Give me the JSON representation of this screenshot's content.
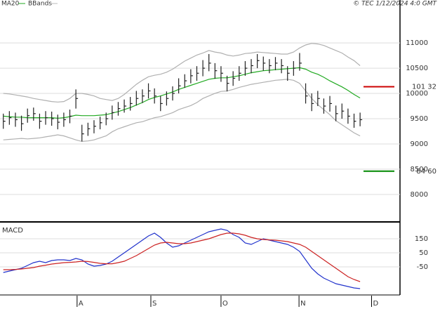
{
  "chart_data": [
    {
      "type": "ohlc",
      "copyright": "© TEC 1/12/2024 4:0 GMT",
      "color": "#222222",
      "xlim": [
        -0.2,
        65.6
      ],
      "ylim": [
        7470,
        11850
      ],
      "yticks": [
        11000,
        10500,
        10000,
        9500,
        9000,
        8500,
        8000
      ],
      "grid": true,
      "close": [
        9450,
        9520,
        9480,
        9400,
        9560,
        9600,
        9450,
        9520,
        9500,
        9430,
        9480,
        9550,
        9900,
        9200,
        9300,
        9350,
        9420,
        9500,
        9620,
        9700,
        9750,
        9800,
        9900,
        9950,
        10050,
        9950,
        9800,
        9900,
        10000,
        10150,
        10250,
        10350,
        10400,
        10500,
        10600,
        10450,
        10400,
        10200,
        10300,
        10400,
        10500,
        10550,
        10650,
        10600,
        10550,
        10600,
        10550,
        10400,
        10500,
        10600,
        9950,
        9800,
        9900,
        9750,
        9800,
        9600,
        9650,
        9550,
        9450,
        9480
      ],
      "high": [
        9600,
        9650,
        9620,
        9560,
        9700,
        9720,
        9600,
        9650,
        9640,
        9580,
        9620,
        9680,
        10080,
        9380,
        9420,
        9470,
        9540,
        9620,
        9760,
        9830,
        9880,
        9930,
        10050,
        10080,
        10200,
        10100,
        9950,
        10040,
        10140,
        10300,
        10380,
        10480,
        10540,
        10660,
        10780,
        10600,
        10540,
        10350,
        10440,
        10540,
        10640,
        10680,
        10780,
        10730,
        10680,
        10720,
        10680,
        10540,
        10640,
        10800,
        10200,
        10000,
        10050,
        9900,
        9950,
        9760,
        9800,
        9700,
        9600,
        9620
      ],
      "low": [
        9300,
        9380,
        9340,
        9260,
        9420,
        9460,
        9300,
        9380,
        9360,
        9290,
        9340,
        9410,
        9700,
        9050,
        9160,
        9210,
        9290,
        9370,
        9480,
        9560,
        9620,
        9660,
        9760,
        9810,
        9900,
        9800,
        9650,
        9760,
        9860,
        10000,
        10110,
        10200,
        10250,
        10340,
        10440,
        10290,
        10230,
        10040,
        10150,
        10250,
        10350,
        10400,
        10500,
        10450,
        10400,
        10460,
        10400,
        10250,
        10350,
        10450,
        9800,
        9650,
        9750,
        9600,
        9640,
        9450,
        9500,
        9400,
        9320,
        9350
      ],
      "series": [
        {
          "name": "MA20",
          "color": "#22aa22",
          "values": [
            9550,
            9540,
            9530,
            9530,
            9520,
            9520,
            9520,
            9520,
            9520,
            9510,
            9520,
            9540,
            9570,
            9560,
            9560,
            9560,
            9570,
            9580,
            9610,
            9640,
            9680,
            9720,
            9770,
            9820,
            9880,
            9920,
            9950,
            9990,
            10030,
            10080,
            10120,
            10160,
            10200,
            10240,
            10280,
            10300,
            10310,
            10310,
            10330,
            10350,
            10380,
            10410,
            10430,
            10450,
            10460,
            10470,
            10480,
            10490,
            10500,
            10510,
            10480,
            10420,
            10380,
            10320,
            10250,
            10190,
            10130,
            10060,
            9980,
            9910
          ]
        },
        {
          "name": "BBands",
          "color": "#b0b0b0",
          "upper": [
            10000,
            9990,
            9970,
            9950,
            9930,
            9900,
            9880,
            9860,
            9840,
            9830,
            9840,
            9900,
            10000,
            10000,
            9980,
            9950,
            9900,
            9880,
            9860,
            9900,
            9980,
            10080,
            10180,
            10260,
            10330,
            10360,
            10380,
            10420,
            10480,
            10560,
            10640,
            10700,
            10760,
            10800,
            10850,
            10820,
            10800,
            10760,
            10740,
            10760,
            10790,
            10800,
            10820,
            10810,
            10800,
            10790,
            10780,
            10780,
            10820,
            10900,
            10960,
            10990,
            10980,
            10950,
            10900,
            10850,
            10800,
            10720,
            10650,
            10550
          ],
          "lower": [
            9080,
            9090,
            9100,
            9110,
            9100,
            9110,
            9120,
            9140,
            9160,
            9180,
            9160,
            9120,
            9080,
            9050,
            9060,
            9080,
            9120,
            9160,
            9240,
            9300,
            9340,
            9380,
            9420,
            9440,
            9480,
            9520,
            9540,
            9580,
            9620,
            9680,
            9720,
            9760,
            9820,
            9900,
            9950,
            10000,
            10040,
            10050,
            10080,
            10120,
            10150,
            10180,
            10200,
            10220,
            10240,
            10260,
            10270,
            10280,
            10260,
            10200,
            10050,
            9900,
            9780,
            9680,
            9580,
            9460,
            9380,
            9300,
            9220,
            9160
          ]
        }
      ],
      "levels": [
        {
          "value": 10132,
          "label": "101 32",
          "color": "#cc0000"
        },
        {
          "value": 8460,
          "label": "84 60",
          "color": "#008800"
        }
      ]
    },
    {
      "type": "line",
      "title": "MACD",
      "xlim": [
        -0.2,
        65.6
      ],
      "xticks": [
        {
          "value": 12.2,
          "label": "A"
        },
        {
          "value": 24.4,
          "label": "S"
        },
        {
          "value": 36.0,
          "label": "O"
        },
        {
          "value": 48.9,
          "label": "N"
        },
        {
          "value": 60.9,
          "label": "D"
        }
      ],
      "ylim": [
        -240,
        260
      ],
      "yticks": [
        150,
        50,
        -50
      ],
      "grid": true,
      "series": [
        {
          "color": "#2233cc",
          "values": [
            -90,
            -80,
            -70,
            -60,
            -40,
            -20,
            -10,
            -20,
            -5,
            0,
            0,
            -5,
            10,
            0,
            -30,
            -45,
            -40,
            -30,
            -10,
            20,
            50,
            80,
            110,
            140,
            170,
            190,
            160,
            120,
            90,
            100,
            120,
            140,
            160,
            180,
            200,
            210,
            220,
            210,
            180,
            160,
            120,
            110,
            130,
            150,
            140,
            130,
            120,
            110,
            90,
            60,
            0,
            -60,
            -100,
            -130,
            -150,
            -170,
            -180,
            -190,
            -200,
            -205
          ]
        },
        {
          "color": "#cc2222",
          "values": [
            -70,
            -70,
            -68,
            -65,
            -60,
            -55,
            -45,
            -38,
            -30,
            -25,
            -20,
            -18,
            -15,
            -10,
            -12,
            -18,
            -25,
            -28,
            -28,
            -20,
            -10,
            10,
            30,
            55,
            80,
            105,
            120,
            125,
            120,
            115,
            115,
            120,
            130,
            140,
            150,
            165,
            180,
            190,
            190,
            185,
            175,
            160,
            150,
            145,
            142,
            140,
            135,
            130,
            120,
            110,
            90,
            60,
            30,
            0,
            -30,
            -60,
            -90,
            -120,
            -140,
            -155
          ]
        }
      ]
    }
  ]
}
